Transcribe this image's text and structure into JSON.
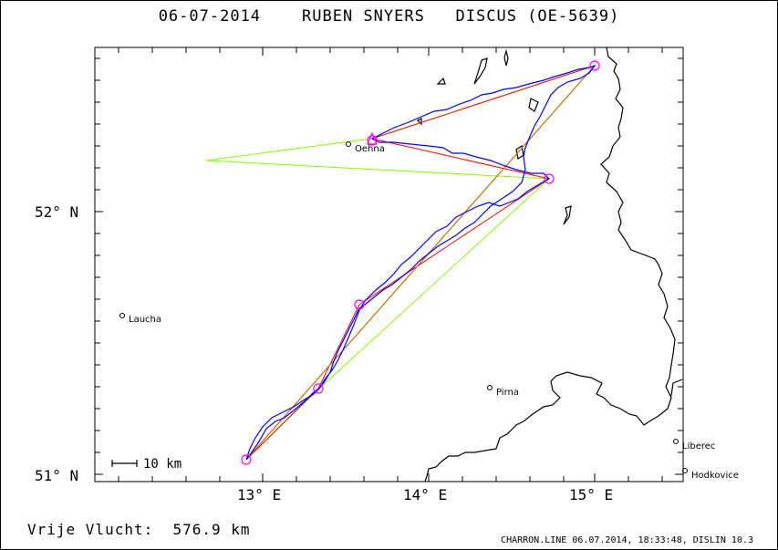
{
  "title": {
    "date": "06-07-2014",
    "pilot": "RUBEN SNYERS",
    "glider": "DISCUS (OE-5639)"
  },
  "axes": {
    "lat_labels": [
      "52° N",
      "51° N"
    ],
    "lon_labels": [
      "13° E",
      "14° E",
      "15° E"
    ]
  },
  "scale_bar": {
    "label": "10 km"
  },
  "towns": [
    {
      "name": "Oehna"
    },
    {
      "name": "Laucha"
    },
    {
      "name": "Pirna"
    },
    {
      "name": "Liberec"
    },
    {
      "name": "Hodkovice"
    }
  ],
  "footer": {
    "left": "Vrije Vlucht:  576.9 km",
    "right": "CHARRON.LINE 06.07.2014, 18:33:48, DISLIN 10.3"
  },
  "colors": {
    "track": "#0000ff",
    "task_line": "#ff0000",
    "optimized_line": "#80ff00",
    "turnpoint": "#ff00ff",
    "border": "#000000"
  }
}
